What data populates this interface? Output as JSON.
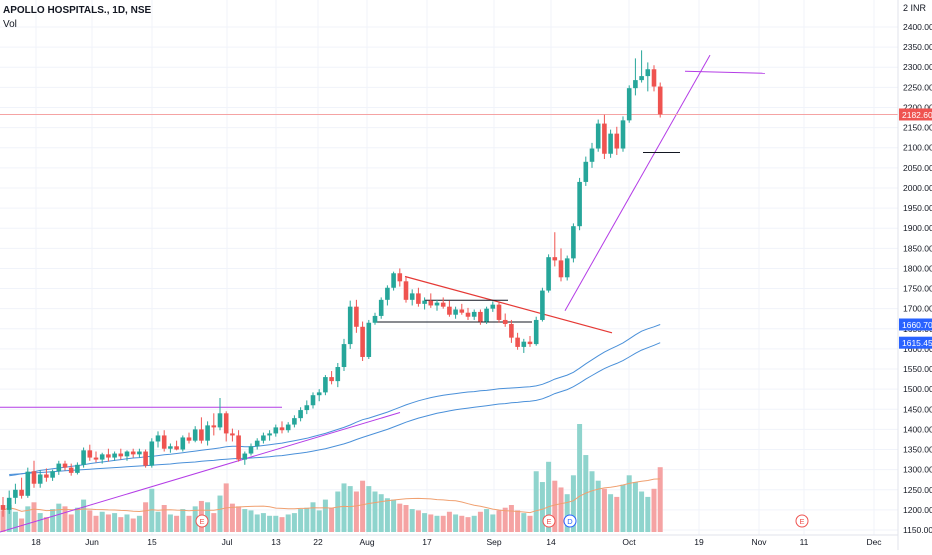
{
  "header": {
    "symbol_line": "APOLLO HOSPITALS., 1D, NSE",
    "volume_label": "Vol",
    "currency": "INR",
    "currency_prefix": "2"
  },
  "chart_data": {
    "type": "candlestick",
    "title": "APOLLO HOSPITALS., 1D, NSE",
    "ylim": [
      1130,
      2420
    ],
    "y_ticks": [
      "1150.00",
      "1200.00",
      "1250.00",
      "1300.00",
      "1350.00",
      "1400.00",
      "1450.00",
      "1500.00",
      "1550.00",
      "1600.00",
      "1650.00",
      "1700.00",
      "1750.00",
      "1800.00",
      "1850.00",
      "1900.00",
      "1950.00",
      "2000.00",
      "2050.00",
      "2100.00",
      "2150.00",
      "2200.00",
      "2250.00",
      "2300.00",
      "2350.00",
      "2400.00"
    ],
    "x_ticks": [
      "18",
      "Jun",
      "15",
      "Jul",
      "13",
      "22",
      "Aug",
      "17",
      "Sep",
      "14",
      "Oct",
      "19",
      "Nov",
      "11",
      "Dec"
    ],
    "price_labels": {
      "last": "2182.60",
      "ma_fast": "1660.70",
      "ma_slow": "1615.45"
    },
    "event_markers": [
      "E",
      "E",
      "D",
      "E"
    ],
    "colors": {
      "up": "#26a69a",
      "down": "#ef5350",
      "vol_up": "#8fd4cd",
      "vol_down": "#f5a3a3",
      "ma": "#4a90d9",
      "trend": "#b43de6",
      "red_line": "#e53935",
      "black_line": "#131722",
      "vol_ma": "#f0a070"
    },
    "candles": [
      {
        "o": 1212,
        "h": 1232,
        "l": 1183,
        "c": 1200,
        "v": 0.16
      },
      {
        "o": 1200,
        "h": 1248,
        "l": 1190,
        "c": 1230,
        "v": 0.2
      },
      {
        "o": 1230,
        "h": 1265,
        "l": 1215,
        "c": 1250,
        "v": 0.15
      },
      {
        "o": 1250,
        "h": 1280,
        "l": 1228,
        "c": 1235,
        "v": 0.1
      },
      {
        "o": 1235,
        "h": 1305,
        "l": 1230,
        "c": 1295,
        "v": 0.19
      },
      {
        "o": 1296,
        "h": 1322,
        "l": 1255,
        "c": 1265,
        "v": 0.22
      },
      {
        "o": 1265,
        "h": 1298,
        "l": 1255,
        "c": 1288,
        "v": 0.14
      },
      {
        "o": 1288,
        "h": 1303,
        "l": 1270,
        "c": 1280,
        "v": 0.11
      },
      {
        "o": 1280,
        "h": 1300,
        "l": 1272,
        "c": 1296,
        "v": 0.17
      },
      {
        "o": 1296,
        "h": 1322,
        "l": 1287,
        "c": 1315,
        "v": 0.21
      },
      {
        "o": 1315,
        "h": 1322,
        "l": 1298,
        "c": 1305,
        "v": 0.19
      },
      {
        "o": 1305,
        "h": 1315,
        "l": 1285,
        "c": 1292,
        "v": 0.13
      },
      {
        "o": 1292,
        "h": 1318,
        "l": 1288,
        "c": 1312,
        "v": 0.18
      },
      {
        "o": 1312,
        "h": 1355,
        "l": 1305,
        "c": 1348,
        "v": 0.24
      },
      {
        "o": 1348,
        "h": 1362,
        "l": 1322,
        "c": 1330,
        "v": 0.16
      },
      {
        "o": 1330,
        "h": 1345,
        "l": 1318,
        "c": 1325,
        "v": 0.12
      },
      {
        "o": 1325,
        "h": 1342,
        "l": 1315,
        "c": 1338,
        "v": 0.15
      },
      {
        "o": 1338,
        "h": 1352,
        "l": 1320,
        "c": 1330,
        "v": 0.13
      },
      {
        "o": 1330,
        "h": 1345,
        "l": 1322,
        "c": 1340,
        "v": 0.14
      },
      {
        "o": 1340,
        "h": 1352,
        "l": 1325,
        "c": 1333,
        "v": 0.11
      },
      {
        "o": 1333,
        "h": 1348,
        "l": 1322,
        "c": 1345,
        "v": 0.13
      },
      {
        "o": 1345,
        "h": 1352,
        "l": 1330,
        "c": 1338,
        "v": 0.1
      },
      {
        "o": 1338,
        "h": 1352,
        "l": 1330,
        "c": 1345,
        "v": 0.12
      },
      {
        "o": 1345,
        "h": 1350,
        "l": 1305,
        "c": 1310,
        "v": 0.22
      },
      {
        "o": 1310,
        "h": 1378,
        "l": 1305,
        "c": 1370,
        "v": 0.32
      },
      {
        "o": 1370,
        "h": 1395,
        "l": 1355,
        "c": 1385,
        "v": 0.15
      },
      {
        "o": 1385,
        "h": 1398,
        "l": 1345,
        "c": 1352,
        "v": 0.2
      },
      {
        "o": 1352,
        "h": 1365,
        "l": 1342,
        "c": 1358,
        "v": 0.13
      },
      {
        "o": 1358,
        "h": 1372,
        "l": 1348,
        "c": 1350,
        "v": 0.12
      },
      {
        "o": 1350,
        "h": 1385,
        "l": 1345,
        "c": 1380,
        "v": 0.17
      },
      {
        "o": 1380,
        "h": 1392,
        "l": 1365,
        "c": 1372,
        "v": 0.12
      },
      {
        "o": 1372,
        "h": 1408,
        "l": 1368,
        "c": 1400,
        "v": 0.19
      },
      {
        "o": 1400,
        "h": 1430,
        "l": 1365,
        "c": 1372,
        "v": 0.23
      },
      {
        "o": 1372,
        "h": 1420,
        "l": 1360,
        "c": 1410,
        "v": 0.22
      },
      {
        "o": 1410,
        "h": 1440,
        "l": 1385,
        "c": 1405,
        "v": 0.14
      },
      {
        "o": 1405,
        "h": 1478,
        "l": 1398,
        "c": 1440,
        "v": 0.27
      },
      {
        "o": 1440,
        "h": 1445,
        "l": 1370,
        "c": 1390,
        "v": 0.36
      },
      {
        "o": 1390,
        "h": 1402,
        "l": 1370,
        "c": 1385,
        "v": 0.21
      },
      {
        "o": 1385,
        "h": 1398,
        "l": 1320,
        "c": 1325,
        "v": 0.19
      },
      {
        "o": 1325,
        "h": 1345,
        "l": 1312,
        "c": 1340,
        "v": 0.17
      },
      {
        "o": 1340,
        "h": 1365,
        "l": 1335,
        "c": 1358,
        "v": 0.16
      },
      {
        "o": 1358,
        "h": 1378,
        "l": 1350,
        "c": 1372,
        "v": 0.13
      },
      {
        "o": 1372,
        "h": 1392,
        "l": 1365,
        "c": 1385,
        "v": 0.14
      },
      {
        "o": 1385,
        "h": 1398,
        "l": 1372,
        "c": 1390,
        "v": 0.12
      },
      {
        "o": 1390,
        "h": 1412,
        "l": 1382,
        "c": 1405,
        "v": 0.12
      },
      {
        "o": 1405,
        "h": 1420,
        "l": 1390,
        "c": 1398,
        "v": 0.11
      },
      {
        "o": 1398,
        "h": 1418,
        "l": 1392,
        "c": 1412,
        "v": 0.13
      },
      {
        "o": 1412,
        "h": 1435,
        "l": 1405,
        "c": 1428,
        "v": 0.14
      },
      {
        "o": 1428,
        "h": 1455,
        "l": 1420,
        "c": 1448,
        "v": 0.17
      },
      {
        "o": 1448,
        "h": 1472,
        "l": 1438,
        "c": 1460,
        "v": 0.18
      },
      {
        "o": 1460,
        "h": 1492,
        "l": 1452,
        "c": 1485,
        "v": 0.22
      },
      {
        "o": 1485,
        "h": 1500,
        "l": 1470,
        "c": 1492,
        "v": 0.16
      },
      {
        "o": 1492,
        "h": 1535,
        "l": 1485,
        "c": 1530,
        "v": 0.24
      },
      {
        "o": 1530,
        "h": 1545,
        "l": 1512,
        "c": 1520,
        "v": 0.18
      },
      {
        "o": 1520,
        "h": 1565,
        "l": 1505,
        "c": 1555,
        "v": 0.3
      },
      {
        "o": 1555,
        "h": 1625,
        "l": 1545,
        "c": 1612,
        "v": 0.36
      },
      {
        "o": 1612,
        "h": 1720,
        "l": 1600,
        "c": 1705,
        "v": 0.34
      },
      {
        "o": 1705,
        "h": 1722,
        "l": 1640,
        "c": 1655,
        "v": 0.3
      },
      {
        "o": 1655,
        "h": 1668,
        "l": 1570,
        "c": 1580,
        "v": 0.38
      },
      {
        "o": 1580,
        "h": 1672,
        "l": 1575,
        "c": 1665,
        "v": 0.34
      },
      {
        "o": 1665,
        "h": 1690,
        "l": 1660,
        "c": 1682,
        "v": 0.3
      },
      {
        "o": 1682,
        "h": 1728,
        "l": 1675,
        "c": 1722,
        "v": 0.28
      },
      {
        "o": 1722,
        "h": 1758,
        "l": 1708,
        "c": 1752,
        "v": 0.25
      },
      {
        "o": 1752,
        "h": 1792,
        "l": 1745,
        "c": 1788,
        "v": 0.24
      },
      {
        "o": 1788,
        "h": 1800,
        "l": 1755,
        "c": 1768,
        "v": 0.21
      },
      {
        "o": 1768,
        "h": 1778,
        "l": 1715,
        "c": 1722,
        "v": 0.2
      },
      {
        "o": 1722,
        "h": 1748,
        "l": 1708,
        "c": 1738,
        "v": 0.17
      },
      {
        "o": 1738,
        "h": 1752,
        "l": 1705,
        "c": 1712,
        "v": 0.16
      },
      {
        "o": 1712,
        "h": 1728,
        "l": 1698,
        "c": 1720,
        "v": 0.14
      },
      {
        "o": 1720,
        "h": 1738,
        "l": 1702,
        "c": 1708,
        "v": 0.13
      },
      {
        "o": 1708,
        "h": 1722,
        "l": 1695,
        "c": 1715,
        "v": 0.12
      },
      {
        "o": 1715,
        "h": 1728,
        "l": 1700,
        "c": 1705,
        "v": 0.12
      },
      {
        "o": 1705,
        "h": 1720,
        "l": 1680,
        "c": 1685,
        "v": 0.15
      },
      {
        "o": 1685,
        "h": 1705,
        "l": 1675,
        "c": 1698,
        "v": 0.13
      },
      {
        "o": 1698,
        "h": 1712,
        "l": 1685,
        "c": 1690,
        "v": 0.12
      },
      {
        "o": 1690,
        "h": 1702,
        "l": 1672,
        "c": 1680,
        "v": 0.11
      },
      {
        "o": 1680,
        "h": 1698,
        "l": 1672,
        "c": 1692,
        "v": 0.12
      },
      {
        "o": 1692,
        "h": 1698,
        "l": 1660,
        "c": 1668,
        "v": 0.15
      },
      {
        "o": 1668,
        "h": 1705,
        "l": 1662,
        "c": 1700,
        "v": 0.17
      },
      {
        "o": 1700,
        "h": 1718,
        "l": 1692,
        "c": 1710,
        "v": 0.13
      },
      {
        "o": 1710,
        "h": 1715,
        "l": 1665,
        "c": 1672,
        "v": 0.16
      },
      {
        "o": 1672,
        "h": 1688,
        "l": 1655,
        "c": 1662,
        "v": 0.18
      },
      {
        "o": 1662,
        "h": 1672,
        "l": 1615,
        "c": 1628,
        "v": 0.2
      },
      {
        "o": 1628,
        "h": 1640,
        "l": 1598,
        "c": 1605,
        "v": 0.16
      },
      {
        "o": 1605,
        "h": 1625,
        "l": 1590,
        "c": 1618,
        "v": 0.14
      },
      {
        "o": 1618,
        "h": 1632,
        "l": 1605,
        "c": 1612,
        "v": 0.12
      },
      {
        "o": 1612,
        "h": 1680,
        "l": 1608,
        "c": 1672,
        "v": 0.45
      },
      {
        "o": 1672,
        "h": 1752,
        "l": 1668,
        "c": 1745,
        "v": 0.37
      },
      {
        "o": 1745,
        "h": 1835,
        "l": 1740,
        "c": 1828,
        "v": 0.52
      },
      {
        "o": 1828,
        "h": 1890,
        "l": 1805,
        "c": 1820,
        "v": 0.38
      },
      {
        "o": 1820,
        "h": 1850,
        "l": 1768,
        "c": 1778,
        "v": 0.33
      },
      {
        "o": 1778,
        "h": 1832,
        "l": 1770,
        "c": 1825,
        "v": 0.28
      },
      {
        "o": 1825,
        "h": 1912,
        "l": 1815,
        "c": 1905,
        "v": 0.42
      },
      {
        "o": 1905,
        "h": 2025,
        "l": 1895,
        "c": 2015,
        "v": 0.8
      },
      {
        "o": 2015,
        "h": 2078,
        "l": 2005,
        "c": 2065,
        "v": 0.57
      },
      {
        "o": 2065,
        "h": 2112,
        "l": 2050,
        "c": 2098,
        "v": 0.45
      },
      {
        "o": 2098,
        "h": 2170,
        "l": 2090,
        "c": 2160,
        "v": 0.38
      },
      {
        "o": 2160,
        "h": 2182,
        "l": 2072,
        "c": 2085,
        "v": 0.32
      },
      {
        "o": 2085,
        "h": 2145,
        "l": 2075,
        "c": 2135,
        "v": 0.28
      },
      {
        "o": 2135,
        "h": 2152,
        "l": 2082,
        "c": 2098,
        "v": 0.26
      },
      {
        "o": 2098,
        "h": 2178,
        "l": 2090,
        "c": 2168,
        "v": 0.35
      },
      {
        "o": 2168,
        "h": 2255,
        "l": 2162,
        "c": 2248,
        "v": 0.42
      },
      {
        "o": 2248,
        "h": 2322,
        "l": 2230,
        "c": 2268,
        "v": 0.37
      },
      {
        "o": 2268,
        "h": 2342,
        "l": 2262,
        "c": 2278,
        "v": 0.3
      },
      {
        "o": 2278,
        "h": 2312,
        "l": 2240,
        "c": 2295,
        "v": 0.26
      },
      {
        "o": 2295,
        "h": 2305,
        "l": 2240,
        "c": 2252,
        "v": 0.32
      },
      {
        "o": 2252,
        "h": 2262,
        "l": 2175,
        "c": 2183,
        "v": 0.48
      }
    ],
    "ma_fast": [
      1285,
      1287,
      1290,
      1292,
      1295,
      1298,
      1300,
      1302,
      1304,
      1306,
      1308,
      1310,
      1312,
      1315,
      1317,
      1319,
      1321,
      1323,
      1325,
      1327,
      1329,
      1330,
      1332,
      1333,
      1335,
      1337,
      1338,
      1340,
      1342,
      1344,
      1346,
      1348,
      1350,
      1352,
      1354,
      1357,
      1358,
      1358,
      1357,
      1357,
      1358,
      1360,
      1362,
      1364,
      1366,
      1369,
      1372,
      1375,
      1378,
      1382,
      1386,
      1390,
      1395,
      1400,
      1405,
      1411,
      1418,
      1424,
      1428,
      1433,
      1438,
      1443,
      1449,
      1455,
      1461,
      1466,
      1471,
      1475,
      1479,
      1482,
      1485,
      1487,
      1489,
      1491,
      1493,
      1494,
      1496,
      1497,
      1499,
      1501,
      1502,
      1503,
      1504,
      1505,
      1506,
      1508,
      1512,
      1518,
      1525,
      1530,
      1535,
      1542,
      1552,
      1563,
      1573,
      1583,
      1592,
      1600,
      1607,
      1615,
      1625,
      1635,
      1644,
      1650,
      1655,
      1660.7
    ],
    "ma_slow": [
      1288,
      1289,
      1290,
      1291,
      1292,
      1293,
      1294,
      1295,
      1296,
      1297,
      1298,
      1299,
      1300,
      1301,
      1302,
      1303,
      1304,
      1305,
      1306,
      1307,
      1308,
      1309,
      1310,
      1311,
      1312,
      1313,
      1314,
      1316,
      1317,
      1318,
      1319,
      1321,
      1322,
      1323,
      1325,
      1326,
      1327,
      1328,
      1328,
      1329,
      1330,
      1331,
      1332,
      1334,
      1335,
      1337,
      1339,
      1341,
      1343,
      1346,
      1349,
      1352,
      1356,
      1360,
      1364,
      1369,
      1375,
      1380,
      1385,
      1390,
      1395,
      1400,
      1406,
      1412,
      1418,
      1423,
      1428,
      1432,
      1436,
      1440,
      1443,
      1446,
      1449,
      1451,
      1453,
      1455,
      1457,
      1459,
      1461,
      1463,
      1464,
      1466,
      1467,
      1469,
      1470,
      1472,
      1476,
      1482,
      1489,
      1494,
      1499,
      1506,
      1515,
      1525,
      1534,
      1543,
      1551,
      1558,
      1564,
      1571,
      1580,
      1589,
      1597,
      1603,
      1609,
      1615.45
    ]
  }
}
